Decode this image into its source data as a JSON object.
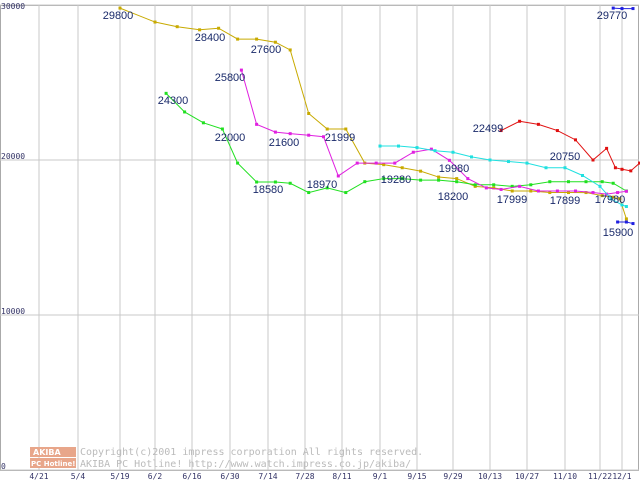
{
  "chart_data": {
    "type": "line",
    "ylim": [
      0,
      30000
    ],
    "y_ticks": [
      "0",
      "10000",
      "20000",
      "30000"
    ],
    "x_ticks": [
      "4/21",
      "5/4",
      "5/19",
      "6/2",
      "6/16",
      "6/30",
      "7/14",
      "7/28",
      "8/11",
      "9/1",
      "9/15",
      "9/29",
      "10/13",
      "10/27",
      "11/10",
      "11/22",
      "12/1"
    ],
    "grid": true,
    "series": [
      {
        "color": "#c8aa00",
        "points": [
          [
            2.0,
            29800
          ],
          [
            3.0,
            28900
          ],
          [
            3.6,
            28600
          ],
          [
            4.2,
            28400
          ],
          [
            4.7,
            28500
          ],
          [
            5.2,
            27800
          ],
          [
            5.7,
            27800
          ],
          [
            6.2,
            27600
          ],
          [
            6.6,
            27100
          ],
          [
            7.1,
            23000
          ],
          [
            7.6,
            22000
          ],
          [
            8.1,
            21999
          ],
          [
            8.6,
            19800
          ],
          [
            9.1,
            19700
          ],
          [
            9.6,
            19500
          ],
          [
            10.1,
            19280
          ],
          [
            10.6,
            18900
          ],
          [
            11.1,
            18800
          ],
          [
            11.6,
            18300
          ],
          [
            12.1,
            18200
          ],
          [
            12.6,
            18000
          ],
          [
            13.1,
            17999
          ],
          [
            13.6,
            17900
          ],
          [
            14.1,
            17900
          ],
          [
            14.6,
            17899
          ],
          [
            15.1,
            17700
          ],
          [
            15.6,
            17600
          ],
          [
            15.9,
            17500
          ],
          [
            16.2,
            16200
          ]
        ]
      },
      {
        "color": "#20e020",
        "points": [
          [
            3.3,
            24300
          ],
          [
            3.8,
            23100
          ],
          [
            4.3,
            22400
          ],
          [
            4.8,
            22000
          ],
          [
            5.2,
            19800
          ],
          [
            5.7,
            18580
          ],
          [
            6.2,
            18580
          ],
          [
            6.6,
            18500
          ],
          [
            7.1,
            17900
          ],
          [
            7.6,
            18200
          ],
          [
            8.1,
            17900
          ],
          [
            8.6,
            18600
          ],
          [
            9.1,
            18800
          ],
          [
            9.6,
            18800
          ],
          [
            10.1,
            18700
          ],
          [
            10.6,
            18700
          ],
          [
            11.1,
            18600
          ],
          [
            11.6,
            18400
          ],
          [
            12.1,
            18400
          ],
          [
            12.6,
            18300
          ],
          [
            13.1,
            18400
          ],
          [
            13.6,
            18600
          ],
          [
            14.1,
            18600
          ],
          [
            14.6,
            18600
          ],
          [
            15.1,
            18600
          ],
          [
            15.6,
            18500
          ],
          [
            16.2,
            18000
          ]
        ]
      },
      {
        "color": "#e020e0",
        "points": [
          [
            5.3,
            25800
          ],
          [
            5.7,
            22300
          ],
          [
            6.2,
            21800
          ],
          [
            6.6,
            21700
          ],
          [
            7.1,
            21600
          ],
          [
            7.5,
            21500
          ],
          [
            7.9,
            18970
          ],
          [
            8.4,
            19800
          ],
          [
            8.9,
            19800
          ],
          [
            9.4,
            19800
          ],
          [
            9.9,
            20500
          ],
          [
            10.4,
            20700
          ],
          [
            10.9,
            19980
          ],
          [
            11.4,
            18800
          ],
          [
            11.9,
            18200
          ],
          [
            12.3,
            18100
          ],
          [
            12.8,
            18300
          ],
          [
            13.3,
            18000
          ],
          [
            13.8,
            18000
          ],
          [
            14.3,
            18000
          ],
          [
            14.8,
            17900
          ],
          [
            15.3,
            17800
          ],
          [
            15.8,
            17900
          ],
          [
            16.2,
            17980
          ]
        ]
      },
      {
        "color": "#20e0e0",
        "points": [
          [
            9.0,
            20900
          ],
          [
            9.5,
            20900
          ],
          [
            10.0,
            20800
          ],
          [
            10.5,
            20600
          ],
          [
            11.0,
            20500
          ],
          [
            11.5,
            20200
          ],
          [
            12.0,
            20000
          ],
          [
            12.5,
            19900
          ],
          [
            13.0,
            19800
          ],
          [
            13.5,
            19500
          ],
          [
            14.0,
            19500
          ],
          [
            14.5,
            19000
          ],
          [
            15.0,
            18300
          ],
          [
            15.5,
            17500
          ],
          [
            16.0,
            17100
          ],
          [
            16.2,
            17000
          ]
        ]
      },
      {
        "color": "#e01010",
        "points": [
          [
            12.3,
            21900
          ],
          [
            12.8,
            22499
          ],
          [
            13.3,
            22300
          ],
          [
            13.8,
            21900
          ],
          [
            14.3,
            21300
          ],
          [
            14.8,
            20000
          ],
          [
            15.3,
            20750
          ],
          [
            15.7,
            19500
          ],
          [
            16.0,
            19400
          ],
          [
            16.4,
            19300
          ],
          [
            16.8,
            19800
          ]
        ]
      },
      {
        "color": "#2020e0",
        "points": [
          [
            15.8,
            16000
          ],
          [
            16.2,
            16000
          ],
          [
            16.5,
            15900
          ],
          [
            15.6,
            29800
          ],
          [
            16.0,
            29770
          ],
          [
            16.5,
            29770
          ]
        ]
      }
    ],
    "annotations": [
      "29800",
      "24300",
      "28400",
      "27600",
      "25800",
      "22000",
      "21600",
      "21999",
      "18580",
      "18970",
      "19280",
      "19980",
      "18200",
      "22499",
      "17999",
      "20750",
      "17899",
      "17980",
      "15900",
      "29770"
    ]
  },
  "footer": {
    "logo_top": "AKIBA",
    "logo_bottom": "PC Hotline!",
    "copyright": "Copyright(c)2001 impress corporation All rights reserved.",
    "site": "AKIBA PC Hotline!  http://www.watch.impress.co.jp/akiba/"
  }
}
